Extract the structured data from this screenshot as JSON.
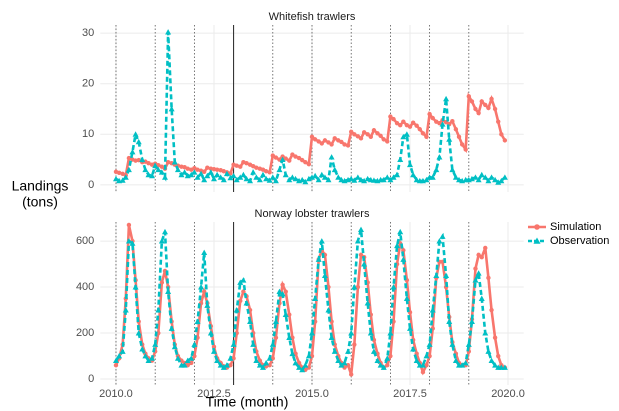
{
  "chart_data": {
    "type": "line",
    "x_label": "Time (month)",
    "y_label": [
      "Landings",
      "(tons)"
    ],
    "xlim": [
      2009.6,
      2020.4
    ],
    "xticks": [
      {
        "value": 2010,
        "label": "2010.0"
      },
      {
        "value": 2012.5,
        "label": "2012.5"
      },
      {
        "value": 2015,
        "label": "2015.0"
      },
      {
        "value": 2017.5,
        "label": "2017.5"
      },
      {
        "value": 2020,
        "label": "2020.0"
      }
    ],
    "dotted_vlines": [
      2010,
      2011,
      2012,
      2014,
      2015,
      2016,
      2017,
      2018,
      2019
    ],
    "solid_vline": 2013,
    "grid": true,
    "legend": "right",
    "x": [
      2010,
      2010.08,
      2010.17,
      2010.25,
      2010.33,
      2010.42,
      2010.5,
      2010.58,
      2010.67,
      2010.75,
      2010.83,
      2010.92,
      2011,
      2011.08,
      2011.17,
      2011.25,
      2011.33,
      2011.42,
      2011.5,
      2011.58,
      2011.67,
      2011.75,
      2011.83,
      2011.92,
      2012,
      2012.08,
      2012.17,
      2012.25,
      2012.33,
      2012.42,
      2012.5,
      2012.58,
      2012.67,
      2012.75,
      2012.83,
      2012.92,
      2013,
      2013.08,
      2013.17,
      2013.25,
      2013.33,
      2013.42,
      2013.5,
      2013.58,
      2013.67,
      2013.75,
      2013.83,
      2013.92,
      2014,
      2014.08,
      2014.17,
      2014.25,
      2014.33,
      2014.42,
      2014.5,
      2014.58,
      2014.67,
      2014.75,
      2014.83,
      2014.92,
      2015,
      2015.08,
      2015.17,
      2015.25,
      2015.33,
      2015.42,
      2015.5,
      2015.58,
      2015.67,
      2015.75,
      2015.83,
      2015.92,
      2016,
      2016.08,
      2016.17,
      2016.25,
      2016.33,
      2016.42,
      2016.5,
      2016.58,
      2016.67,
      2016.75,
      2016.83,
      2016.92,
      2017,
      2017.08,
      2017.17,
      2017.25,
      2017.33,
      2017.42,
      2017.5,
      2017.58,
      2017.67,
      2017.75,
      2017.83,
      2017.92,
      2018,
      2018.08,
      2018.17,
      2018.25,
      2018.33,
      2018.42,
      2018.5,
      2018.58,
      2018.67,
      2018.75,
      2018.83,
      2018.92,
      2019,
      2019.08,
      2019.17,
      2019.25,
      2019.33,
      2019.42,
      2019.5,
      2019.58,
      2019.67,
      2019.75,
      2019.83,
      2019.92
    ],
    "panels": [
      {
        "title": "Whitefish trawlers",
        "ylim": [
          -1.4,
          31.6
        ],
        "yticks": [
          0,
          10,
          20,
          30
        ],
        "series": [
          {
            "name": "Simulation",
            "color": "#F8766D",
            "style": "solid",
            "marker": "circle",
            "values": [
              2.6,
              2.4,
              2.2,
              1.9,
              5.3,
              5.0,
              4.8,
              4.9,
              4.5,
              4.6,
              4.3,
              4.0,
              4.2,
              3.9,
              3.6,
              3.2,
              4.5,
              4.3,
              4.0,
              3.8,
              3.6,
              3.5,
              3.2,
              3.0,
              3.3,
              3.0,
              2.8,
              2.6,
              3.4,
              3.2,
              3.1,
              3.0,
              2.9,
              2.7,
              2.5,
              2.3,
              4.0,
              3.8,
              3.6,
              4.5,
              4.3,
              4.0,
              3.7,
              3.4,
              3.2,
              3.0,
              2.7,
              2.5,
              5.8,
              5.4,
              5.0,
              5.6,
              5.2,
              4.8,
              6.0,
              5.6,
              5.3,
              4.9,
              4.5,
              4.1,
              9.5,
              9.0,
              8.6,
              8.2,
              8.8,
              8.4,
              8.0,
              9.2,
              8.8,
              8.5,
              8.0,
              7.8,
              10.5,
              10.0,
              9.6,
              9.2,
              10.4,
              10.0,
              9.5,
              10.8,
              10.2,
              9.7,
              9.0,
              8.6,
              13.5,
              13.0,
              12.2,
              11.8,
              12.5,
              11.8,
              11.5,
              12.3,
              11.7,
              11.0,
              10.2,
              9.5,
              14.0,
              13.2,
              12.5,
              12.2,
              12.8,
              12.4,
              12.0,
              12.6,
              11.0,
              9.5,
              8.0,
              7.0,
              17.5,
              16.5,
              15.0,
              14.2,
              16.5,
              15.8,
              15.2,
              17.0,
              15.0,
              12.5,
              10.0,
              8.8
            ]
          },
          {
            "name": "Observation",
            "color": "#00BFC4",
            "style": "dashed",
            "marker": "triangle",
            "values": [
              1.2,
              0.8,
              0.9,
              1.5,
              3.0,
              6.5,
              10.0,
              8.5,
              5.0,
              3.0,
              2.0,
              1.8,
              3.8,
              3.0,
              2.5,
              1.5,
              30.2,
              15.0,
              4.5,
              3.0,
              2.0,
              2.5,
              1.8,
              2.0,
              2.5,
              1.5,
              2.2,
              1.0,
              1.8,
              2.5,
              1.2,
              2.0,
              1.5,
              1.0,
              2.2,
              1.4,
              1.8,
              1.0,
              1.5,
              2.0,
              1.2,
              0.8,
              2.5,
              1.5,
              1.0,
              2.0,
              1.2,
              0.9,
              1.5,
              0.8,
              3.0,
              5.0,
              2.0,
              1.0,
              1.5,
              1.2,
              0.8,
              1.0,
              0.6,
              1.2,
              1.5,
              1.8,
              1.0,
              2.0,
              1.5,
              1.0,
              5.5,
              3.0,
              1.5,
              1.0,
              0.8,
              1.0,
              1.2,
              0.9,
              1.5,
              1.0,
              0.8,
              1.2,
              1.0,
              0.9,
              0.8,
              1.0,
              1.0,
              1.5,
              1.0,
              1.5,
              2.0,
              5.0,
              9.5,
              10.0,
              4.0,
              2.0,
              1.0,
              0.8,
              0.8,
              1.0,
              1.5,
              1.5,
              3.0,
              5.5,
              12.0,
              17.0,
              9.0,
              3.0,
              1.5,
              1.0,
              0.8,
              1.0,
              1.0,
              1.2,
              1.5,
              1.0,
              2.0,
              1.5,
              0.8,
              1.5,
              1.0,
              0.5,
              0.8,
              1.5
            ]
          }
        ]
      },
      {
        "title": "Norway lobster trawlers",
        "ylim": [
          -26,
          683
        ],
        "yticks": [
          0,
          200,
          400,
          600
        ],
        "series": [
          {
            "name": "Simulation",
            "color": "#F8766D",
            "style": "solid",
            "marker": "circle",
            "values": [
              60,
              90,
              150,
              350,
              670,
              600,
              430,
              250,
              150,
              110,
              90,
              80,
              120,
              200,
              420,
              470,
              400,
              250,
              150,
              100,
              80,
              70,
              60,
              70,
              100,
              180,
              330,
              380,
              330,
              230,
              140,
              90,
              70,
              55,
              50,
              60,
              90,
              200,
              340,
              380,
              360,
              300,
              200,
              120,
              80,
              60,
              55,
              60,
              90,
              180,
              330,
              410,
              380,
              280,
              180,
              110,
              70,
              50,
              40,
              50,
              100,
              250,
              520,
              560,
              540,
              400,
              250,
              150,
              100,
              70,
              50,
              60,
              20,
              150,
              400,
              540,
              530,
              420,
              280,
              170,
              110,
              70,
              50,
              60,
              100,
              250,
              500,
              590,
              560,
              430,
              290,
              170,
              110,
              70,
              30,
              60,
              100,
              220,
              440,
              510,
              510,
              400,
              270,
              160,
              110,
              70,
              60,
              60,
              120,
              260,
              480,
              540,
              530,
              570,
              440,
              300,
              180,
              100,
              60,
              50
            ]
          },
          {
            "name": "Observation",
            "color": "#00BFC4",
            "style": "dashed",
            "marker": "triangle",
            "values": [
              80,
              100,
              120,
              300,
              600,
              590,
              400,
              200,
              130,
              100,
              80,
              90,
              150,
              300,
              600,
              640,
              380,
              220,
              140,
              90,
              60,
              60,
              80,
              90,
              150,
              250,
              400,
              550,
              320,
              200,
              120,
              80,
              60,
              50,
              60,
              90,
              150,
              300,
              420,
              430,
              330,
              250,
              150,
              80,
              60,
              50,
              70,
              90,
              150,
              250,
              380,
              370,
              280,
              180,
              110,
              70,
              50,
              40,
              60,
              100,
              200,
              350,
              520,
              600,
              450,
              300,
              180,
              120,
              80,
              60,
              70,
              120,
              200,
              400,
              600,
              650,
              500,
              330,
              200,
              120,
              80,
              60,
              50,
              90,
              200,
              400,
              580,
              640,
              520,
              350,
              220,
              130,
              80,
              60,
              60,
              100,
              150,
              300,
              450,
              600,
              620,
              450,
              250,
              150,
              80,
              60,
              60,
              70,
              150,
              250,
              430,
              460,
              350,
              200,
              120,
              80,
              60,
              50,
              50,
              50
            ]
          }
        ]
      }
    ]
  }
}
